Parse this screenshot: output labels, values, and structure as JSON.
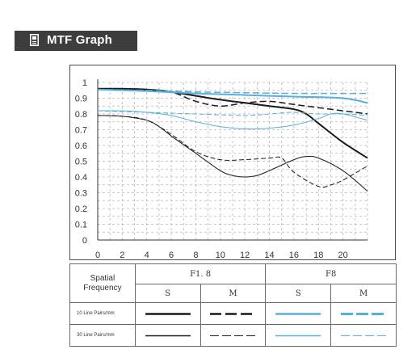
{
  "header": {
    "title": "MTF Graph",
    "icon": "document-icon",
    "background": "#3d3d3d"
  },
  "colors": {
    "f18": "#1a1a1a",
    "f8": "#5aaedc"
  },
  "chart_data": {
    "type": "line",
    "title": "",
    "xlabel": "",
    "ylabel": "",
    "xlim": [
      0,
      22
    ],
    "ylim": [
      0,
      1
    ],
    "x_ticks": [
      "0",
      "2",
      "4",
      "6",
      "8",
      "10",
      "12",
      "14",
      "16",
      "18",
      "20"
    ],
    "y_ticks": [
      "0",
      "0.1",
      "0.2",
      "0.3",
      "0.4",
      "0.5",
      "0.6",
      "0.7",
      "0.8",
      "0.9",
      "1"
    ],
    "grid": true,
    "series": [
      {
        "aperture": "F1.8",
        "line_pairs": "10 Line Pairs/mm",
        "type": "S",
        "color": "#1a1a1a",
        "dash": "solid",
        "width": 2,
        "points": [
          [
            0,
            0.96
          ],
          [
            2,
            0.96
          ],
          [
            4,
            0.955
          ],
          [
            6,
            0.94
          ],
          [
            8,
            0.915
          ],
          [
            10,
            0.89
          ],
          [
            12,
            0.87
          ],
          [
            14,
            0.85
          ],
          [
            16,
            0.83
          ],
          [
            17,
            0.8
          ],
          [
            18,
            0.74
          ],
          [
            20,
            0.62
          ],
          [
            22,
            0.52
          ]
        ]
      },
      {
        "aperture": "F1.8",
        "line_pairs": "10 Line Pairs/mm",
        "type": "M",
        "color": "#1a1a1a",
        "dash": "dashed",
        "width": 1.5,
        "points": [
          [
            0,
            0.96
          ],
          [
            2,
            0.96
          ],
          [
            4,
            0.955
          ],
          [
            6,
            0.94
          ],
          [
            8,
            0.88
          ],
          [
            10,
            0.85
          ],
          [
            12,
            0.87
          ],
          [
            14,
            0.88
          ],
          [
            16,
            0.86
          ],
          [
            18,
            0.84
          ],
          [
            20,
            0.82
          ],
          [
            22,
            0.8
          ]
        ]
      },
      {
        "aperture": "F1.8",
        "line_pairs": "30 Line Pairs/mm",
        "type": "S",
        "color": "#1a1a1a",
        "dash": "solid",
        "width": 1,
        "points": [
          [
            0,
            0.79
          ],
          [
            2,
            0.785
          ],
          [
            4,
            0.76
          ],
          [
            5,
            0.72
          ],
          [
            6,
            0.66
          ],
          [
            8,
            0.55
          ],
          [
            10,
            0.44
          ],
          [
            11,
            0.41
          ],
          [
            12,
            0.4
          ],
          [
            13,
            0.41
          ],
          [
            14,
            0.44
          ],
          [
            16,
            0.51
          ],
          [
            17,
            0.53
          ],
          [
            18,
            0.52
          ],
          [
            20,
            0.44
          ],
          [
            22,
            0.31
          ]
        ]
      },
      {
        "aperture": "F1.8",
        "line_pairs": "30 Line Pairs/mm",
        "type": "M",
        "color": "#1a1a1a",
        "dash": "thin-dashed",
        "width": 1,
        "points": [
          [
            0,
            0.79
          ],
          [
            2,
            0.785
          ],
          [
            4,
            0.76
          ],
          [
            6,
            0.67
          ],
          [
            8,
            0.56
          ],
          [
            10,
            0.51
          ],
          [
            12,
            0.51
          ],
          [
            14,
            0.52
          ],
          [
            15,
            0.52
          ],
          [
            16,
            0.43
          ],
          [
            18,
            0.34
          ],
          [
            19,
            0.35
          ],
          [
            20,
            0.38
          ],
          [
            22,
            0.47
          ]
        ]
      },
      {
        "aperture": "F8",
        "line_pairs": "10 Line Pairs/mm",
        "type": "S",
        "color": "#5aaedc",
        "dash": "solid",
        "width": 2,
        "points": [
          [
            0,
            0.955
          ],
          [
            4,
            0.945
          ],
          [
            8,
            0.93
          ],
          [
            12,
            0.92
          ],
          [
            16,
            0.91
          ],
          [
            20,
            0.9
          ],
          [
            22,
            0.87
          ]
        ]
      },
      {
        "aperture": "F8",
        "line_pairs": "10 Line Pairs/mm",
        "type": "M",
        "color": "#5aaedc",
        "dash": "dashed",
        "width": 1.5,
        "points": [
          [
            0,
            0.955
          ],
          [
            4,
            0.95
          ],
          [
            8,
            0.94
          ],
          [
            12,
            0.935
          ],
          [
            16,
            0.93
          ],
          [
            20,
            0.93
          ],
          [
            22,
            0.93
          ]
        ]
      },
      {
        "aperture": "F8",
        "line_pairs": "30 Line Pairs/mm",
        "type": "S",
        "color": "#5aaedc",
        "dash": "solid",
        "width": 1,
        "points": [
          [
            0,
            0.82
          ],
          [
            2,
            0.82
          ],
          [
            4,
            0.81
          ],
          [
            6,
            0.79
          ],
          [
            8,
            0.75
          ],
          [
            10,
            0.72
          ],
          [
            12,
            0.705
          ],
          [
            14,
            0.71
          ],
          [
            16,
            0.73
          ],
          [
            18,
            0.77
          ],
          [
            19,
            0.8
          ],
          [
            20,
            0.8
          ],
          [
            22,
            0.76
          ]
        ]
      },
      {
        "aperture": "F8",
        "line_pairs": "30 Line Pairs/mm",
        "type": "M",
        "color": "#5aaedc",
        "dash": "thin-dashed",
        "width": 1,
        "points": [
          [
            0,
            0.82
          ],
          [
            4,
            0.81
          ],
          [
            8,
            0.8
          ],
          [
            12,
            0.79
          ],
          [
            14,
            0.8
          ],
          [
            16,
            0.81
          ],
          [
            18,
            0.8
          ],
          [
            20,
            0.8
          ],
          [
            22,
            0.79
          ]
        ]
      }
    ]
  },
  "legend": {
    "corner_line1": "Spatial",
    "corner_line2": "Frequency",
    "apertures": [
      "F1. 8",
      "F8"
    ],
    "types": [
      "S",
      "M",
      "S",
      "M"
    ],
    "rows": [
      "10 Line Pairs/mm",
      "30 Line Pairs/mm"
    ]
  }
}
